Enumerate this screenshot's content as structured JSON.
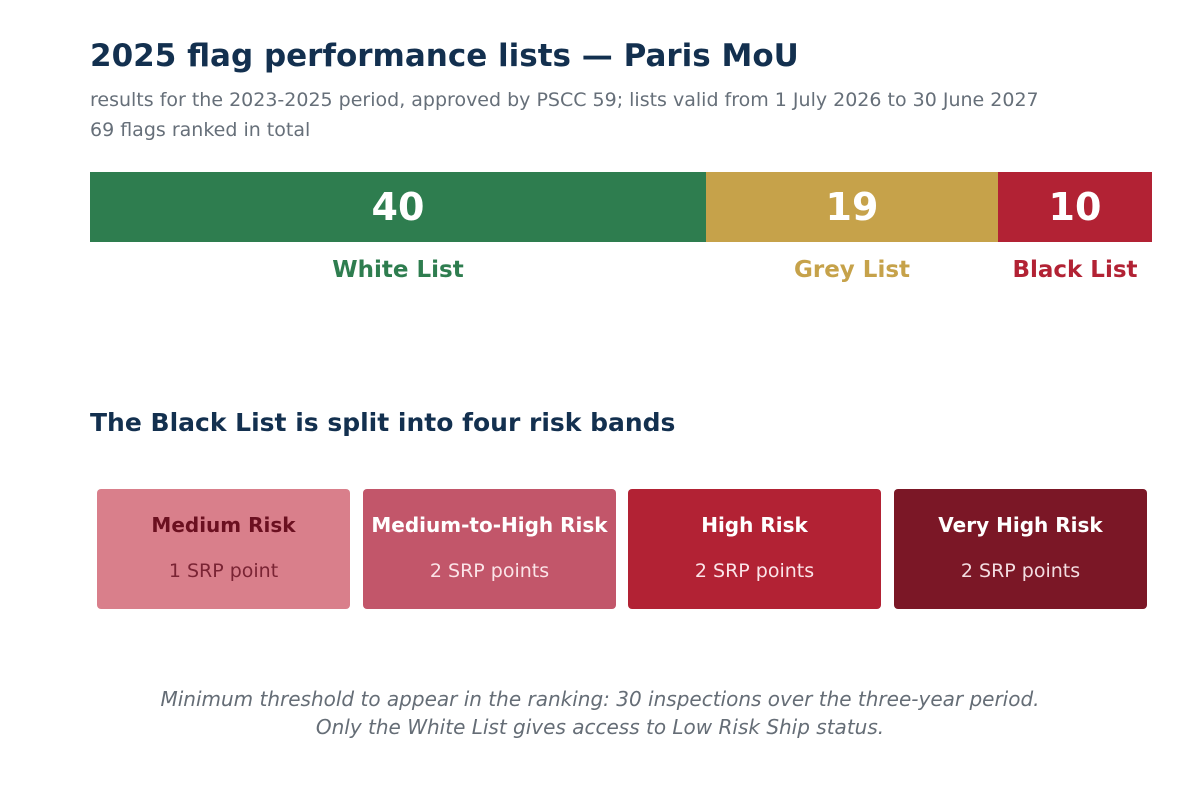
{
  "header": {
    "title": "2025 flag performance lists — Paris MoU",
    "subtitle_line1": "results for the 2023-2025 period, approved by PSCC 59; lists valid from 1 July 2026 to 30 June 2027",
    "subtitle_line2": "69 flags ranked in total"
  },
  "chart_data": {
    "type": "bar",
    "orientation": "horizontal-stacked",
    "categories": [
      "White List",
      "Grey List",
      "Black List"
    ],
    "values": [
      40,
      19,
      10
    ],
    "total": 69,
    "colors": [
      "#2e7d4f",
      "#c6a24a",
      "#b22234"
    ]
  },
  "risk_bands": {
    "title": "The Black List is split into four risk bands",
    "bands": [
      {
        "name": "Medium Risk",
        "points": "1 SRP point",
        "bg": "#d97f8b",
        "name_color": "#6b1020",
        "points_color": "#7a2434"
      },
      {
        "name": "Medium-to-High Risk",
        "points": "2 SRP points",
        "bg": "#c2566a",
        "name_color": "#ffffff",
        "points_color": "#fbe4e8"
      },
      {
        "name": "High Risk",
        "points": "2 SRP points",
        "bg": "#b22234",
        "name_color": "#ffffff",
        "points_color": "#fbe4e8"
      },
      {
        "name": "Very High Risk",
        "points": "2 SRP points",
        "bg": "#7b1726",
        "name_color": "#ffffff",
        "points_color": "#f3dde1"
      }
    ]
  },
  "footnote": {
    "line1": "Minimum threshold to appear in the ranking: 30 inspections over the three-year period.",
    "line2": "Only the White List gives access to Low Risk Ship status."
  }
}
